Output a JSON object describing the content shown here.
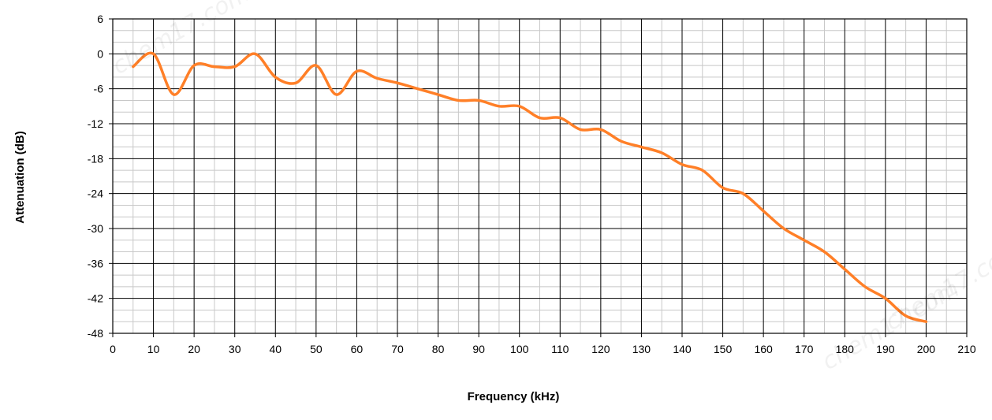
{
  "chart_data": {
    "type": "line",
    "title": "",
    "xlabel": "Frequency (kHz)",
    "ylabel": "Attenuation (dB)",
    "xlim": [
      0,
      210
    ],
    "ylim": [
      -48,
      6
    ],
    "x_ticks": [
      0,
      10,
      20,
      30,
      40,
      50,
      60,
      70,
      80,
      90,
      100,
      110,
      120,
      130,
      140,
      150,
      160,
      170,
      180,
      190,
      200,
      210
    ],
    "y_ticks": [
      6,
      0,
      -6,
      -12,
      -18,
      -24,
      -30,
      -36,
      -42,
      -48
    ],
    "grid": true,
    "legend": "none",
    "series": [
      {
        "color": "#ff7f27",
        "x": [
          5,
          10,
          15,
          20,
          25,
          30,
          35,
          40,
          45,
          50,
          55,
          60,
          65,
          70,
          75,
          80,
          85,
          90,
          95,
          100,
          105,
          110,
          115,
          120,
          125,
          130,
          135,
          140,
          145,
          150,
          155,
          160,
          165,
          170,
          175,
          180,
          185,
          190,
          195,
          200
        ],
        "values": [
          -2.2,
          0.0,
          -7.0,
          -2.0,
          -2.2,
          -2.2,
          0.0,
          -4.0,
          -5.0,
          -2.0,
          -7.0,
          -3.0,
          -4.2,
          -5.0,
          -6.0,
          -7.0,
          -8.0,
          -8.0,
          -9.0,
          -9.0,
          -11.0,
          -11.0,
          -13.0,
          -13.0,
          -15.0,
          -16.0,
          -17.0,
          -19.0,
          -20.0,
          -23.0,
          -24.0,
          -27.0,
          -30.0,
          -32.0,
          -34.0,
          -37.0,
          -40.0,
          -42.0,
          -45.0,
          -46.0
        ]
      }
    ]
  },
  "watermarks": [
    "chem17.com",
    "chem17.com",
    "chem17.com"
  ]
}
